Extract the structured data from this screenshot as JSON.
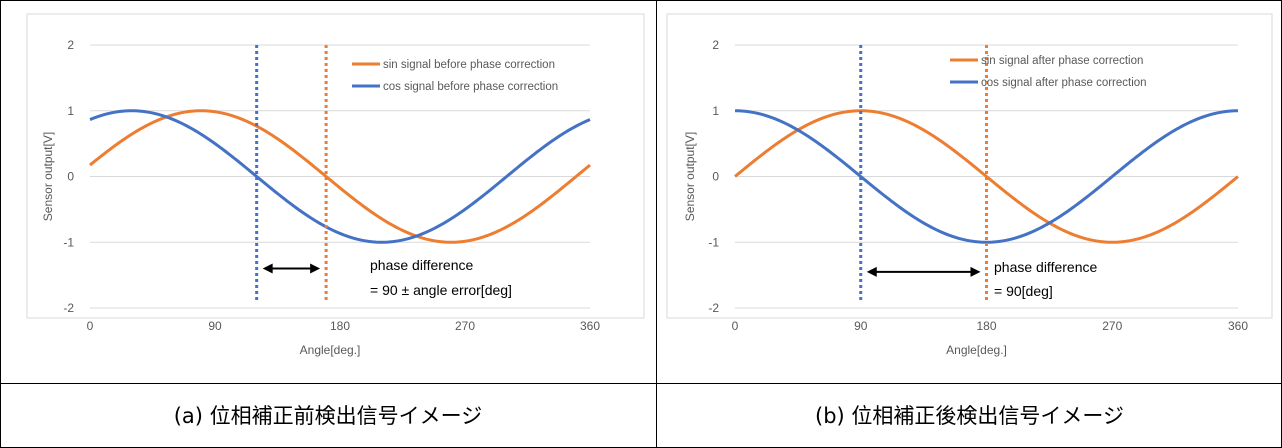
{
  "captions": [
    "(a) 位相補正前検出信号イメージ",
    "(b) 位相補正後検出信号イメージ"
  ],
  "colors": {
    "sin": "#ED7D31",
    "cos": "#4472C4",
    "grid": "#D9D9D9",
    "axis_text": "#595959"
  },
  "chart_data": [
    {
      "type": "line",
      "title": "",
      "xlabel": "Angle[deg.]",
      "ylabel": "Sensor output[V]",
      "xlim": [
        0,
        360
      ],
      "ylim": [
        -2,
        2
      ],
      "xticks": [
        "0",
        "90",
        "180",
        "270",
        "360"
      ],
      "yticks": [
        "2",
        "1",
        "0",
        "-1",
        "-2"
      ],
      "grid": "horizontal",
      "legend_position": "top-right",
      "series": [
        {
          "name": "sin signal before phase correction",
          "function": "sin",
          "phase_shift_deg": 10,
          "color": "#ED7D31"
        },
        {
          "name": "cos signal before phase correction",
          "function": "cos",
          "phase_shift_deg": -30,
          "color": "#4472C4"
        }
      ],
      "markers": [
        {
          "x": 120,
          "color": "#4472C4",
          "style": "dotted"
        },
        {
          "x": 170,
          "color": "#ED7D31",
          "style": "dotted"
        }
      ],
      "annotation": {
        "line1": "phase difference",
        "line2": "= 90 ± angle error[deg]",
        "arrow_from_x": 120,
        "arrow_to_x": 170,
        "y": -1.4
      }
    },
    {
      "type": "line",
      "title": "",
      "xlabel": "Angle[deg.]",
      "ylabel": "Sensor output[V]",
      "xlim": [
        0,
        360
      ],
      "ylim": [
        -2,
        2
      ],
      "xticks": [
        "0",
        "90",
        "180",
        "270",
        "360"
      ],
      "yticks": [
        "2",
        "1",
        "0",
        "-1",
        "-2"
      ],
      "grid": "horizontal",
      "legend_position": "top-right",
      "series": [
        {
          "name": "sin signal after phase correction",
          "function": "sin",
          "phase_shift_deg": 0,
          "color": "#ED7D31"
        },
        {
          "name": "cos signal after phase correction",
          "function": "cos",
          "phase_shift_deg": 0,
          "color": "#4472C4"
        }
      ],
      "markers": [
        {
          "x": 90,
          "color": "#4472C4",
          "style": "dotted"
        },
        {
          "x": 180,
          "color": "#ED7D31",
          "style": "dotted"
        }
      ],
      "annotation": {
        "line1": "phase difference",
        "line2": "= 90[deg]",
        "arrow_from_x": 90,
        "arrow_to_x": 180,
        "y": -1.45
      }
    }
  ]
}
